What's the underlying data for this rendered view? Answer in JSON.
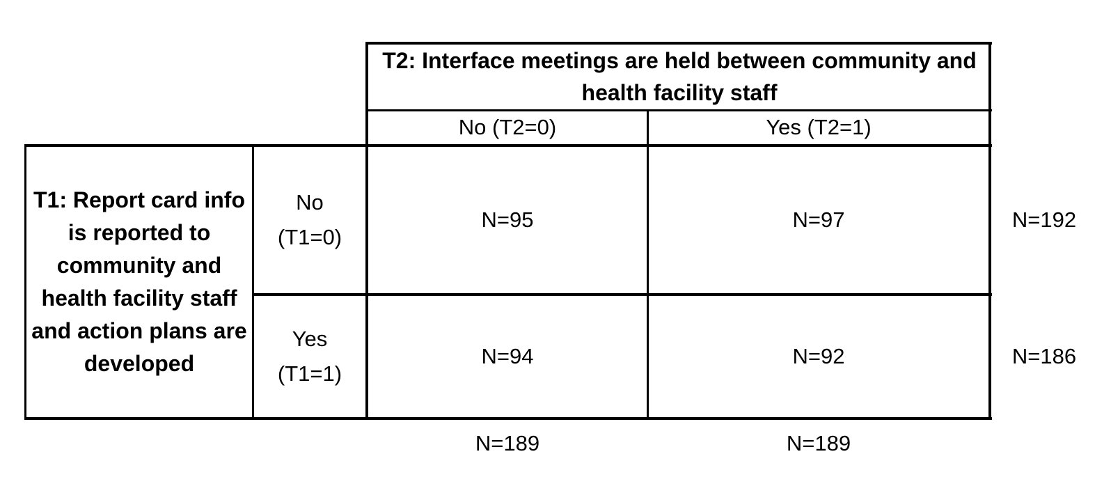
{
  "t2_header": {
    "title": "T2: Interface meetings are held between community and health facility staff",
    "no_label": "No (T2=0)",
    "yes_label": "Yes (T2=1)"
  },
  "t1_header": {
    "title": "T1: Report card info is reported to community and health facility staff and action plans are developed",
    "no_label": "No\n(T1=0)",
    "yes_label": "Yes\n(T1=1)"
  },
  "cells": {
    "no_no": "N=95",
    "no_yes": "N=97",
    "yes_no": "N=94",
    "yes_yes": "N=92"
  },
  "row_totals": {
    "no": "N=192",
    "yes": "N=186"
  },
  "col_totals": {
    "no": "N=189",
    "yes": "N=189"
  }
}
